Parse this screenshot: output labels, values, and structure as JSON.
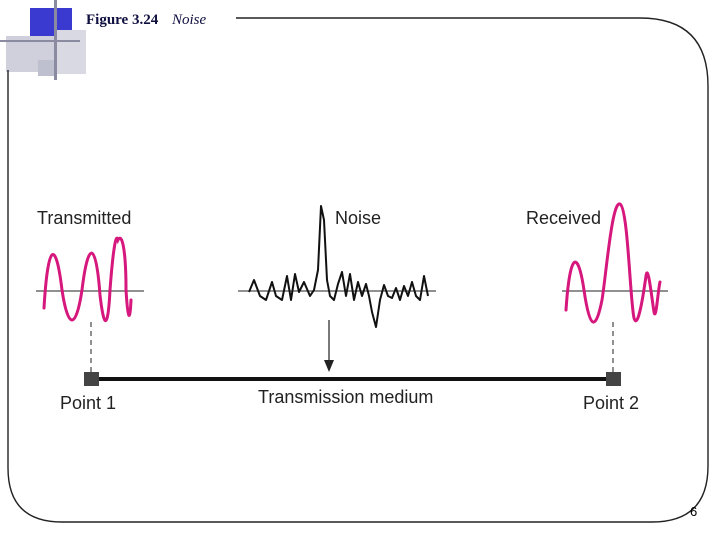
{
  "slide": {
    "figure_number": "Figure 3.24",
    "figure_title": "Noise",
    "page_number": "6"
  },
  "diagram": {
    "labels": {
      "transmitted": "Transmitted",
      "noise": "Noise",
      "received": "Received",
      "point1": "Point 1",
      "point2": "Point 2",
      "medium": "Transmission medium"
    },
    "colors": {
      "signal": "#d6177d",
      "noise": "#111111",
      "medium": "#111111",
      "frame": "#222222",
      "accent_blue": "#3a3ad0",
      "accent_gray": "#b8b8c8"
    }
  }
}
